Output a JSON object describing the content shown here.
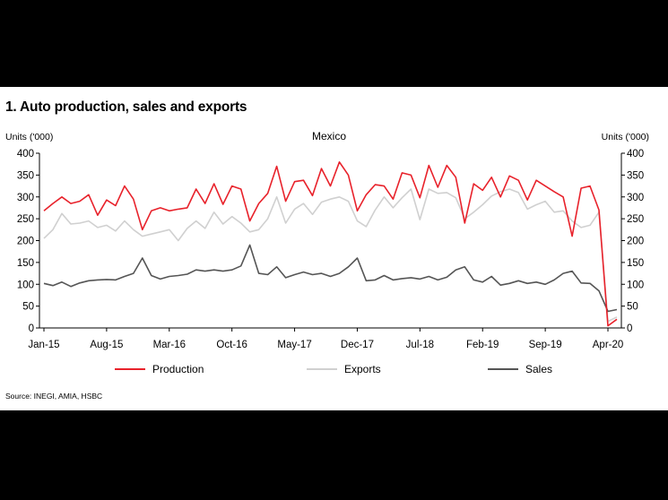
{
  "figure": {
    "title": "1. Auto production, sales and exports",
    "source": "Source: INEGI, AMIA, HSBC"
  },
  "chart_data": {
    "type": "line",
    "title": "Mexico",
    "ylabel_left": "Units ('000)",
    "ylabel_right": "Units ('000)",
    "ylim": [
      0,
      400
    ],
    "yticks": [
      0,
      50,
      100,
      150,
      200,
      250,
      300,
      350,
      400
    ],
    "x_tick_labels": [
      "Jan-15",
      "Aug-15",
      "Mar-16",
      "Oct-16",
      "May-17",
      "Dec-17",
      "Jul-18",
      "Feb-19",
      "Sep-19",
      "Apr-20"
    ],
    "x_tick_indices": [
      0,
      7,
      14,
      21,
      28,
      35,
      42,
      49,
      56,
      63
    ],
    "grid": false,
    "legend_position": "bottom",
    "series": [
      {
        "name": "Production",
        "color": "#e8222b",
        "values": [
          268,
          285,
          300,
          285,
          290,
          305,
          258,
          293,
          280,
          325,
          295,
          225,
          268,
          275,
          268,
          272,
          275,
          318,
          285,
          330,
          283,
          325,
          318,
          245,
          285,
          308,
          370,
          290,
          335,
          338,
          303,
          365,
          325,
          380,
          350,
          268,
          305,
          328,
          325,
          295,
          355,
          350,
          298,
          372,
          322,
          372,
          345,
          240,
          330,
          315,
          345,
          300,
          348,
          338,
          293,
          338,
          325,
          312,
          300,
          210,
          320,
          325,
          270,
          5,
          20
        ]
      },
      {
        "name": "Exports",
        "color": "#d0d0d0",
        "values": [
          205,
          225,
          262,
          238,
          240,
          245,
          230,
          235,
          222,
          245,
          225,
          210,
          215,
          220,
          225,
          200,
          228,
          245,
          228,
          265,
          238,
          255,
          240,
          220,
          225,
          250,
          300,
          240,
          272,
          285,
          260,
          288,
          295,
          300,
          290,
          245,
          232,
          270,
          300,
          275,
          298,
          318,
          248,
          318,
          308,
          310,
          298,
          250,
          265,
          282,
          302,
          312,
          318,
          310,
          272,
          282,
          290,
          265,
          268,
          245,
          230,
          235,
          265,
          15,
          25
        ]
      },
      {
        "name": "Sales",
        "color": "#555555",
        "values": [
          102,
          97,
          105,
          95,
          103,
          108,
          110,
          111,
          110,
          118,
          125,
          160,
          120,
          112,
          118,
          120,
          123,
          133,
          130,
          133,
          130,
          133,
          142,
          190,
          125,
          122,
          140,
          115,
          122,
          128,
          122,
          125,
          118,
          125,
          140,
          160,
          108,
          110,
          120,
          110,
          113,
          115,
          112,
          118,
          110,
          116,
          133,
          140,
          110,
          105,
          118,
          98,
          102,
          108,
          102,
          105,
          100,
          110,
          125,
          130,
          103,
          102,
          85,
          38,
          42
        ]
      }
    ]
  }
}
